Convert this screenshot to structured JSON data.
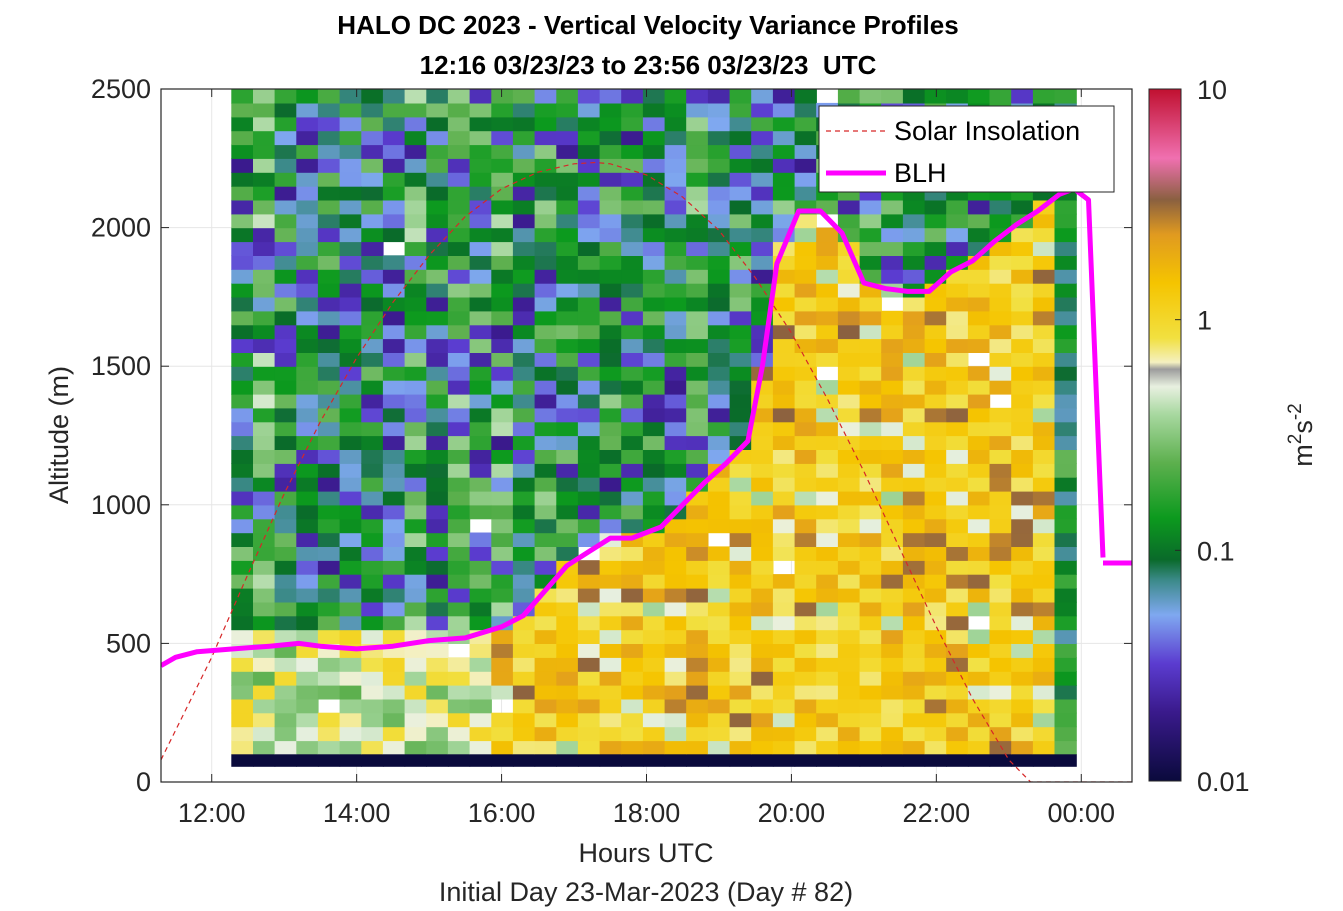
{
  "chart_data": {
    "type": "heatmap",
    "title": "HALO DC 2023 - Vertical Velocity Variance Profiles",
    "subtitle": "12:16 03/23/23 to 23:56 03/23/23  UTC",
    "xlabel": "Hours UTC",
    "xlabel2": "Initial Day 23-Mar-2023 (Day # 82)",
    "ylabel": "Altitude (m)",
    "xlim": [
      11.3,
      24.7
    ],
    "ylim": [
      0,
      2500
    ],
    "x_ticks": [
      12,
      14,
      16,
      18,
      20,
      22,
      24
    ],
    "x_tick_labels": [
      "12:00",
      "14:00",
      "16:00",
      "18:00",
      "20:00",
      "22:00",
      "00:00"
    ],
    "y_ticks": [
      0,
      500,
      1000,
      1500,
      2000,
      2500
    ],
    "y_tick_labels": [
      "0",
      "500",
      "1000",
      "1500",
      "2000",
      "2500"
    ],
    "grid": true,
    "colorbar": {
      "label": "m²s⁻²",
      "label_base": "m",
      "label_exp1": "2",
      "label_mid": "s",
      "label_exp2": "-2",
      "scale": "log",
      "range": [
        0.01,
        10
      ],
      "ticks": [
        0.01,
        0.1,
        1,
        10
      ],
      "tick_labels": [
        "0.01",
        "0.1",
        "1",
        "10"
      ]
    },
    "heatmap_time_range": [
      12.27,
      23.93
    ],
    "heatmap_alt_range": [
      100,
      2500
    ],
    "series": [
      {
        "name": "Solar Insolation",
        "style": "dashed",
        "color": "#d62728",
        "x": [
          11.3,
          12.0,
          12.5,
          13.0,
          13.5,
          14.0,
          14.5,
          15.0,
          15.5,
          16.0,
          16.5,
          17.0,
          17.3,
          17.5,
          18.0,
          18.5,
          19.0,
          19.5,
          20.0,
          20.5,
          21.0,
          21.5,
          22.0,
          22.5,
          23.0,
          23.3,
          23.6,
          24.0,
          24.7
        ],
        "y": [
          80,
          450,
          750,
          1040,
          1300,
          1530,
          1730,
          1900,
          2040,
          2140,
          2200,
          2230,
          2235,
          2230,
          2190,
          2110,
          1990,
          1820,
          1620,
          1380,
          1120,
          840,
          560,
          300,
          80,
          0,
          0,
          0,
          0
        ]
      },
      {
        "name": "BLH",
        "style": "solid",
        "color": "#ff00ff",
        "segments": [
          {
            "x": [
              11.3,
              11.5,
              11.8,
              12.3,
              12.8,
              13.2,
              13.5,
              14.0,
              14.5,
              15.0,
              15.5,
              16.0,
              16.3,
              16.6,
              16.9,
              17.2,
              17.5,
              17.8,
              18.2,
              18.5,
              18.8,
              19.1,
              19.4,
              19.6,
              19.8,
              20.1,
              20.4,
              20.7,
              21.0,
              21.3,
              21.6,
              21.9,
              22.2,
              22.5,
              22.8,
              23.1,
              23.4,
              23.7,
              23.9,
              24.1,
              24.3
            ],
            "y": [
              420,
              450,
              470,
              480,
              490,
              500,
              490,
              480,
              490,
              510,
              520,
              560,
              600,
              690,
              780,
              830,
              880,
              880,
              920,
              1000,
              1080,
              1150,
              1230,
              1500,
              1870,
              2060,
              2060,
              1980,
              1800,
              1780,
              1770,
              1770,
              1840,
              1880,
              1950,
              2010,
              2060,
              2120,
              2140,
              2100,
              810
            ]
          },
          {
            "x": [
              24.3,
              24.7
            ],
            "y": [
              790,
              790
            ]
          }
        ]
      }
    ],
    "legend": {
      "placement": "top-right",
      "entries": [
        "Solar Insolation",
        "BLH"
      ]
    }
  }
}
